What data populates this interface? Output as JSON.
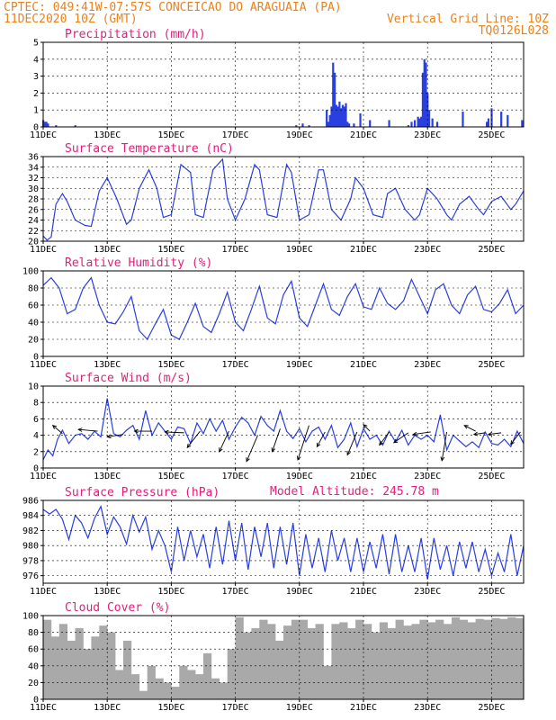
{
  "header": {
    "line1_left": "CPTEC:   049:41W-07:57S  CONCEICAO DO ARAGUAIA (PA)",
    "line2_left": "11DEC2020 10Z (GMT)",
    "line2_right": "Vertical Grid Line: 10Z",
    "line3_right": "TQ0126L028",
    "model_altitude": "Model Altitude: 245.78 m"
  },
  "colors": {
    "series": "#2a3fe0",
    "cloud": "#a9a9a9",
    "title": "#e0207a",
    "header": "#e8821e"
  },
  "x_ticks": [
    "11DEC",
    "13DEC",
    "15DEC",
    "17DEC",
    "19DEC",
    "21DEC",
    "23DEC",
    "25DEC"
  ],
  "x_tick_days": [
    0,
    2,
    4,
    6,
    8,
    10,
    12,
    14
  ],
  "x_range_days": [
    0,
    15
  ],
  "chart_data": [
    {
      "type": "bar",
      "title": "Precipitation (mm/h)",
      "ylim": [
        0,
        5
      ],
      "yticks": [
        0,
        1,
        2,
        3,
        4,
        5
      ],
      "x_days": [
        0.0,
        0.05,
        0.1,
        0.15,
        0.4,
        1.0,
        7.9,
        8.1,
        8.3,
        8.85,
        8.9,
        8.95,
        9.0,
        9.05,
        9.1,
        9.15,
        9.2,
        9.25,
        9.3,
        9.35,
        9.4,
        9.45,
        9.5,
        9.55,
        9.7,
        9.9,
        10.2,
        10.8,
        11.4,
        11.5,
        11.6,
        11.7,
        11.75,
        11.8,
        11.85,
        11.9,
        11.95,
        12.0,
        12.05,
        12.15,
        12.3,
        13.1,
        13.85,
        13.9,
        14.0,
        14.3,
        14.5,
        14.95
      ],
      "values": [
        0.4,
        0.3,
        0.3,
        0.2,
        0.1,
        0.1,
        0.1,
        0.2,
        0.1,
        1.0,
        0.3,
        0.7,
        1.2,
        3.8,
        3.2,
        1.3,
        1.2,
        1.5,
        1.1,
        1.3,
        1.2,
        1.4,
        0.3,
        0.2,
        0.2,
        0.8,
        0.4,
        0.4,
        0.1,
        0.3,
        0.4,
        0.6,
        0.5,
        0.6,
        3.2,
        4.0,
        3.8,
        2.0,
        1.0,
        0.5,
        0.3,
        0.9,
        0.3,
        0.5,
        1.1,
        0.9,
        0.7,
        0.4
      ]
    },
    {
      "type": "line",
      "title": "Surface Temperature (nC)",
      "ylim": [
        20,
        36
      ],
      "yticks": [
        20,
        22,
        24,
        26,
        28,
        30,
        32,
        34,
        36
      ],
      "x_days": [
        0,
        0.12,
        0.25,
        0.4,
        0.6,
        0.75,
        1.0,
        1.3,
        1.5,
        1.75,
        2.0,
        2.3,
        2.6,
        2.75,
        3.0,
        3.3,
        3.55,
        3.75,
        4.0,
        4.3,
        4.6,
        4.75,
        5.0,
        5.3,
        5.6,
        5.75,
        6.0,
        6.3,
        6.6,
        6.75,
        7.0,
        7.3,
        7.6,
        7.75,
        8.0,
        8.3,
        8.6,
        8.75,
        9.0,
        9.3,
        9.6,
        9.75,
        10.0,
        10.3,
        10.6,
        10.75,
        11.0,
        11.3,
        11.6,
        11.75,
        12.0,
        12.3,
        12.6,
        12.75,
        13.0,
        13.3,
        13.6,
        13.75,
        14.0,
        14.3,
        14.6,
        14.75,
        15.0
      ],
      "values": [
        21,
        20.2,
        20.8,
        27,
        29,
        27.5,
        24,
        23,
        22.8,
        29.5,
        32,
        28,
        23.2,
        24,
        30,
        33.5,
        30,
        24.5,
        25,
        34.5,
        33,
        25,
        24.5,
        33.5,
        35.5,
        28,
        24,
        28,
        34.5,
        33.5,
        25,
        24.5,
        34.5,
        33,
        24,
        25,
        33.5,
        33.5,
        26,
        24,
        28,
        32,
        30,
        25,
        24.5,
        29,
        30,
        26,
        24,
        25,
        30,
        28,
        25,
        24,
        27,
        28.5,
        26,
        25,
        27.5,
        28.5,
        26,
        27,
        29.5
      ]
    },
    {
      "type": "line",
      "title": "Relative Humidity (%)",
      "ylim": [
        0,
        100
      ],
      "yticks": [
        0,
        20,
        40,
        60,
        80,
        100
      ],
      "x_days": [
        0,
        0.25,
        0.5,
        0.75,
        1.0,
        1.25,
        1.5,
        1.75,
        2.0,
        2.25,
        2.5,
        2.75,
        3.0,
        3.25,
        3.5,
        3.75,
        4.0,
        4.25,
        4.5,
        4.75,
        5.0,
        5.25,
        5.5,
        5.75,
        6.0,
        6.25,
        6.5,
        6.75,
        7.0,
        7.25,
        7.5,
        7.75,
        8.0,
        8.25,
        8.5,
        8.75,
        9.0,
        9.25,
        9.5,
        9.75,
        10.0,
        10.25,
        10.5,
        10.75,
        11.0,
        11.25,
        11.5,
        11.75,
        12.0,
        12.25,
        12.5,
        12.75,
        13.0,
        13.25,
        13.5,
        13.75,
        14.0,
        14.25,
        14.5,
        14.75,
        15.0
      ],
      "values": [
        83,
        92,
        80,
        50,
        55,
        80,
        92,
        60,
        40,
        38,
        52,
        70,
        30,
        20,
        38,
        55,
        25,
        20,
        40,
        62,
        35,
        28,
        50,
        75,
        40,
        30,
        55,
        82,
        45,
        38,
        72,
        88,
        45,
        35,
        60,
        85,
        55,
        48,
        70,
        85,
        58,
        55,
        80,
        62,
        55,
        65,
        90,
        70,
        50,
        78,
        85,
        60,
        50,
        72,
        82,
        55,
        52,
        62,
        78,
        50,
        60
      ]
    },
    {
      "type": "line",
      "title": "Surface Wind (m/s)",
      "ylim": [
        0,
        10
      ],
      "yticks": [
        0,
        2,
        4,
        6,
        8,
        10
      ],
      "x_days": [
        0,
        0.15,
        0.3,
        0.45,
        0.6,
        0.8,
        1.0,
        1.2,
        1.4,
        1.6,
        1.8,
        2.0,
        2.2,
        2.4,
        2.6,
        2.8,
        3.0,
        3.2,
        3.4,
        3.6,
        3.8,
        4.0,
        4.2,
        4.4,
        4.6,
        4.8,
        5.0,
        5.2,
        5.4,
        5.6,
        5.8,
        6.0,
        6.2,
        6.4,
        6.6,
        6.8,
        7.0,
        7.2,
        7.4,
        7.6,
        7.8,
        8.0,
        8.2,
        8.4,
        8.6,
        8.8,
        9.0,
        9.2,
        9.4,
        9.6,
        9.8,
        10.0,
        10.2,
        10.4,
        10.6,
        10.8,
        11.0,
        11.2,
        11.4,
        11.6,
        11.8,
        12.0,
        12.2,
        12.4,
        12.6,
        12.8,
        13.0,
        13.2,
        13.4,
        13.6,
        13.8,
        14.0,
        14.2,
        14.4,
        14.6,
        14.8,
        15.0
      ],
      "values": [
        1.0,
        2.2,
        1.5,
        3.5,
        4.6,
        3.0,
        4.0,
        4.2,
        3.5,
        4.5,
        3.8,
        8.5,
        4.2,
        3.8,
        4.6,
        5.2,
        3.5,
        7.0,
        4.0,
        5.5,
        4.5,
        3.5,
        5.0,
        4.8,
        3.0,
        5.5,
        4.2,
        6.0,
        4.5,
        5.8,
        3.5,
        5.0,
        6.2,
        5.5,
        4.0,
        6.3,
        5.2,
        4.5,
        7.0,
        4.5,
        3.6,
        4.8,
        3.2,
        4.5,
        5.0,
        3.5,
        5.2,
        2.5,
        3.5,
        5.5,
        2.6,
        4.8,
        3.5,
        4.0,
        2.8,
        4.5,
        3.2,
        4.6,
        2.8,
        4.0,
        3.5,
        4.0,
        3.2,
        6.5,
        2.2,
        4.0,
        3.3,
        2.6,
        3.2,
        2.5,
        4.4,
        3.0,
        2.8,
        3.5,
        2.6,
        4.5,
        3.0
      ],
      "arrows": [
        {
          "x": 0.6,
          "y": 4.2,
          "dx": -0.3,
          "dy": 1.0
        },
        {
          "x": 1.7,
          "y": 4.5,
          "dx": -0.6,
          "dy": 0.2
        },
        {
          "x": 2.5,
          "y": 4.1,
          "dx": -0.5,
          "dy": -0.3
        },
        {
          "x": 3.4,
          "y": 4.5,
          "dx": -0.55,
          "dy": 0.0
        },
        {
          "x": 4.4,
          "y": 4.3,
          "dx": -0.6,
          "dy": 0.1
        },
        {
          "x": 4.9,
          "y": 4.5,
          "dx": -0.4,
          "dy": -2.0
        },
        {
          "x": 5.8,
          "y": 4.5,
          "dx": -0.3,
          "dy": -2.5
        },
        {
          "x": 6.7,
          "y": 4.0,
          "dx": -0.35,
          "dy": -3.2
        },
        {
          "x": 7.4,
          "y": 4.8,
          "dx": -0.25,
          "dy": -2.8
        },
        {
          "x": 8.3,
          "y": 5.2,
          "dx": -0.35,
          "dy": -4.2
        },
        {
          "x": 8.8,
          "y": 4.4,
          "dx": -0.25,
          "dy": -1.8
        },
        {
          "x": 9.8,
          "y": 4.4,
          "dx": -0.3,
          "dy": -2.8
        },
        {
          "x": 10.2,
          "y": 4.5,
          "dx": -0.2,
          "dy": 0.8
        },
        {
          "x": 10.8,
          "y": 4.4,
          "dx": -0.3,
          "dy": -1.6
        },
        {
          "x": 11.4,
          "y": 4.3,
          "dx": -0.45,
          "dy": -1.2
        },
        {
          "x": 12.1,
          "y": 4.4,
          "dx": -0.55,
          "dy": -0.3
        },
        {
          "x": 12.6,
          "y": 4.4,
          "dx": -0.15,
          "dy": -3.5
        },
        {
          "x": 13.5,
          "y": 4.5,
          "dx": -0.35,
          "dy": 0.7
        },
        {
          "x": 13.8,
          "y": 4.3,
          "dx": -0.35,
          "dy": -0.2
        },
        {
          "x": 14.3,
          "y": 4.3,
          "dx": -0.4,
          "dy": -0.2
        },
        {
          "x": 14.9,
          "y": 4.4,
          "dx": -0.3,
          "dy": -1.5
        }
      ]
    },
    {
      "type": "line",
      "title": "Surface Pressure (hPa)",
      "ylim": [
        975,
        986
      ],
      "yticks": [
        976,
        978,
        980,
        982,
        984,
        986
      ],
      "x_days": [
        0,
        0.2,
        0.4,
        0.6,
        0.8,
        1.0,
        1.2,
        1.4,
        1.6,
        1.8,
        2.0,
        2.2,
        2.4,
        2.6,
        2.8,
        3.0,
        3.2,
        3.4,
        3.6,
        3.8,
        4.0,
        4.2,
        4.4,
        4.6,
        4.8,
        5.0,
        5.2,
        5.4,
        5.6,
        5.8,
        6.0,
        6.2,
        6.4,
        6.6,
        6.8,
        7.0,
        7.2,
        7.4,
        7.6,
        7.8,
        8.0,
        8.2,
        8.4,
        8.6,
        8.8,
        9.0,
        9.2,
        9.4,
        9.6,
        9.8,
        10.0,
        10.2,
        10.4,
        10.6,
        10.8,
        11.0,
        11.2,
        11.4,
        11.6,
        11.8,
        12.0,
        12.2,
        12.4,
        12.6,
        12.8,
        13.0,
        13.2,
        13.4,
        13.6,
        13.8,
        14.0,
        14.2,
        14.4,
        14.6,
        14.8,
        15.0
      ],
      "values": [
        984.8,
        984.2,
        984.8,
        983.5,
        980.8,
        984.0,
        983.0,
        981.0,
        983.6,
        985.2,
        981.5,
        983.8,
        982.5,
        980.2,
        984.0,
        981.8,
        983.8,
        979.5,
        982.0,
        980.0,
        976.5,
        982.5,
        978.0,
        982.0,
        978.5,
        981.5,
        977.0,
        982.5,
        977.5,
        983.3,
        978.0,
        983.0,
        976.8,
        982.5,
        978.5,
        983.0,
        977.0,
        982.5,
        977.5,
        983.0,
        976.0,
        981.5,
        977.0,
        981.0,
        976.5,
        982.0,
        978.0,
        981.0,
        976.5,
        981.0,
        976.5,
        980.5,
        977.0,
        981.5,
        976.2,
        981.5,
        976.5,
        980.0,
        976.5,
        981.0,
        975.5,
        981.0,
        976.8,
        980.0,
        976.0,
        980.5,
        977.0,
        980.5,
        976.5,
        979.5,
        976.0,
        979.0,
        976.5,
        981.5,
        976.0,
        980.0
      ]
    },
    {
      "type": "bar",
      "title": "Cloud Cover (%)",
      "ylim": [
        0,
        100
      ],
      "yticks": [
        0,
        20,
        40,
        60,
        80,
        100
      ],
      "x_days": [
        0,
        0.25,
        0.5,
        0.75,
        1.0,
        1.25,
        1.5,
        1.75,
        2.0,
        2.25,
        2.5,
        2.75,
        3.0,
        3.25,
        3.5,
        3.75,
        4.0,
        4.25,
        4.5,
        4.75,
        5.0,
        5.25,
        5.5,
        5.75,
        6.0,
        6.25,
        6.5,
        6.75,
        7.0,
        7.25,
        7.5,
        7.75,
        8.0,
        8.25,
        8.5,
        8.75,
        9.0,
        9.25,
        9.5,
        9.75,
        10.0,
        10.25,
        10.5,
        10.75,
        11.0,
        11.25,
        11.5,
        11.75,
        12.0,
        12.25,
        12.5,
        12.75,
        13.0,
        13.25,
        13.5,
        13.75,
        14.0,
        14.25,
        14.5,
        14.75
      ],
      "values": [
        95,
        75,
        90,
        70,
        85,
        60,
        75,
        88,
        80,
        35,
        70,
        30,
        10,
        40,
        25,
        20,
        15,
        40,
        35,
        30,
        55,
        25,
        20,
        60,
        98,
        80,
        85,
        95,
        90,
        70,
        88,
        95,
        95,
        85,
        90,
        40,
        90,
        92,
        85,
        95,
        90,
        80,
        92,
        85,
        95,
        88,
        90,
        95,
        92,
        95,
        90,
        98,
        95,
        92,
        96,
        95,
        97,
        96,
        98,
        97
      ]
    }
  ]
}
